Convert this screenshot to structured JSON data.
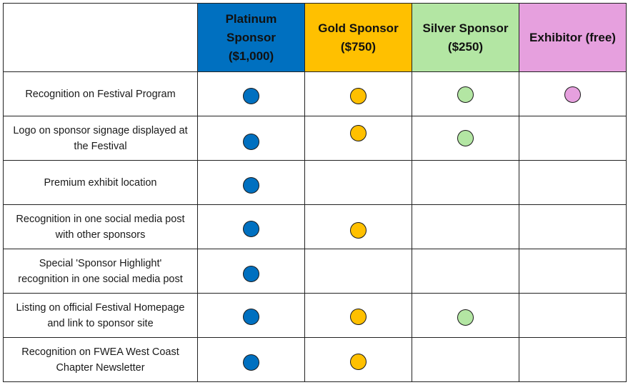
{
  "header": {
    "corner": "",
    "platinum_line1": "Platinum",
    "platinum_line2": "Sponsor",
    "platinum_line3": "($1,000)",
    "gold_line1": "Gold Sponsor",
    "gold_line2": "($750)",
    "silver_line1": "Silver Sponsor",
    "silver_line2": "($250)",
    "exhibitor": "Exhibitor (free)"
  },
  "colors": {
    "platinum": "#0070c0",
    "gold": "#ffc000",
    "silver": "#b3e6a3",
    "exhibitor": "#e6a0de"
  },
  "rows": [
    {
      "line1": "Recognition on Festival Program",
      "line2": "",
      "tiers": [
        true,
        true,
        true,
        true
      ]
    },
    {
      "line1": "Logo on sponsor signage displayed at",
      "line2": "the Festival",
      "tiers": [
        true,
        true,
        true,
        false
      ]
    },
    {
      "line1": "Premium exhibit location",
      "line2": "",
      "tiers": [
        true,
        false,
        false,
        false
      ]
    },
    {
      "line1": "Recognition in one social media post",
      "line2": "with other sponsors",
      "tiers": [
        true,
        true,
        false,
        false
      ]
    },
    {
      "line1": "Special 'Sponsor Highlight'",
      "line2": "recognition in one social media post",
      "tiers": [
        true,
        false,
        false,
        false
      ]
    },
    {
      "line1": "Listing on official Festival Homepage",
      "line2": "and link to sponsor site",
      "tiers": [
        true,
        true,
        true,
        false
      ]
    },
    {
      "line1": "Recognition on FWEA West Coast",
      "line2": "Chapter Newsletter",
      "tiers": [
        true,
        true,
        false,
        false
      ]
    }
  ]
}
